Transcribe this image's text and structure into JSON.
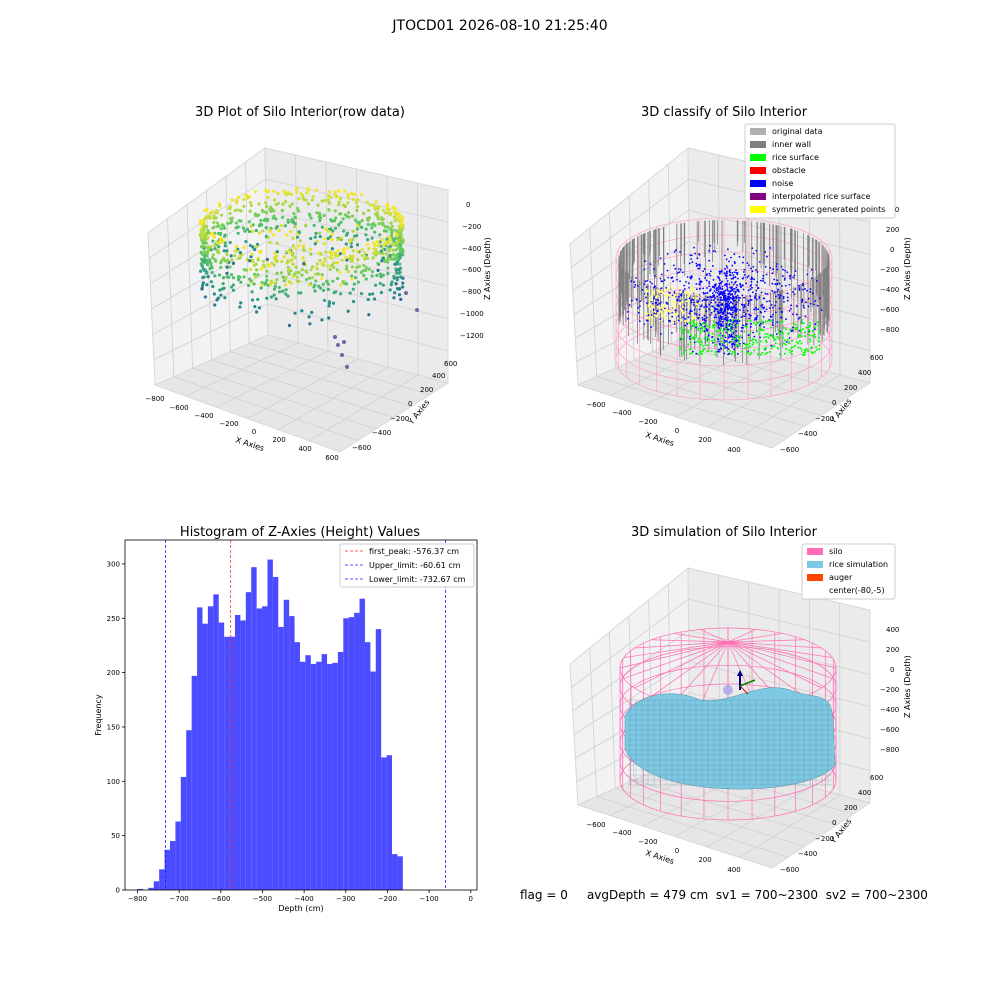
{
  "suptitle": "JTOCD01 2026-08-10 21:25:40",
  "status": {
    "flag": "flag = 0",
    "avgDepth": "avgDepth = 479 cm",
    "sv1": "sv1 = 700~2300",
    "sv2": "sv2 = 700~2300"
  },
  "colors": {
    "hist_bar": "#4b4bff",
    "first_peak_line": "#ff2a2a",
    "limit_line": "#1a1aff",
    "silo": "#ff6eb4",
    "rice_simulation": "#7ec8e3",
    "auger": "#ff4500",
    "rice_surface": "#00ff00",
    "noise": "#0000ff",
    "inner_wall": "#808080",
    "original_data": "#b0b0b0",
    "obstacle": "#ff0000",
    "interpolated": "#800080",
    "symmetric": "#ffff00"
  },
  "chart_data": [
    {
      "type": "scatter",
      "title": "3D Plot of Silo Interior(row data)",
      "xlabel": "X Axies",
      "ylabel": "Y Axies",
      "zlabel": "Z Axies (Depth)",
      "x_ticks": [
        "−800",
        "−600",
        "−400",
        "−200",
        "0",
        "200",
        "400",
        "600"
      ],
      "y_ticks": [
        "−600",
        "−400",
        "−200",
        "0",
        "200",
        "400",
        "600"
      ],
      "z_ticks": [
        "0",
        "−200",
        "−400",
        "−600",
        "−800",
        "−1000",
        "−1200"
      ],
      "xlim": [
        -800,
        600
      ],
      "ylim": [
        -600,
        600
      ],
      "zlim": [
        -1200,
        0
      ],
      "colormap": "viridis"
    },
    {
      "type": "scatter",
      "title": "3D classify of Silo Interior",
      "xlabel": "X Axies",
      "ylabel": "Y Axies",
      "zlabel": "Z Axies (Depth)",
      "x_ticks": [
        "−600",
        "−400",
        "−200",
        "0",
        "200",
        "400"
      ],
      "y_ticks": [
        "−600",
        "−400",
        "−200",
        "0",
        "200",
        "400",
        "600"
      ],
      "z_ticks": [
        "400",
        "200",
        "0",
        "−200",
        "−400",
        "−600",
        "−800"
      ],
      "legend": [
        "original data",
        "inner wall",
        "rice surface",
        "obstacle",
        "noise",
        "interpolated rice surface",
        "symmetric generated points"
      ],
      "legend_position": "top-right"
    },
    {
      "type": "bar",
      "title": "Histogram of Z-Axies (Height) Values",
      "xlabel": "Depth (cm)",
      "ylabel": "Frequency",
      "xlim": [
        -830,
        15
      ],
      "ylim": [
        0,
        322
      ],
      "x_ticks": [
        -800,
        -700,
        -600,
        -500,
        -400,
        -300,
        -200,
        -100,
        0
      ],
      "x_tick_labels": [
        "−800",
        "−700",
        "−600",
        "−500",
        "−400",
        "−300",
        "−200",
        "−100",
        "0"
      ],
      "y_ticks": [
        0,
        50,
        100,
        150,
        200,
        250,
        300
      ],
      "bin_start": -800,
      "bin_width": 13,
      "values": [
        1,
        0,
        2,
        8,
        19,
        37,
        45,
        63,
        104,
        147,
        197,
        260,
        245,
        261,
        272,
        246,
        233,
        233,
        253,
        248,
        274,
        297,
        259,
        261,
        304,
        288,
        242,
        267,
        252,
        228,
        210,
        216,
        208,
        210,
        217,
        208,
        209,
        219,
        250,
        251,
        255,
        268,
        228,
        201,
        240,
        122,
        124,
        33,
        31
      ],
      "vlines": [
        {
          "label": "first_peak: -576.37 cm",
          "x": -576.37,
          "color": "red"
        },
        {
          "label": "Upper_limit: -60.61 cm",
          "x": -60.61,
          "color": "blue"
        },
        {
          "label": "Lower_limit: -732.67 cm",
          "x": -732.67,
          "color": "blue"
        }
      ],
      "legend_position": "top-right"
    },
    {
      "type": "surface",
      "title": "3D simulation of Silo Interior",
      "xlabel": "X Axies",
      "ylabel": "Y Axies",
      "zlabel": "Z Axies (Depth)",
      "x_ticks": [
        "−600",
        "−400",
        "−200",
        "0",
        "200",
        "400"
      ],
      "y_ticks": [
        "−600",
        "−400",
        "−200",
        "0",
        "200",
        "400",
        "600"
      ],
      "z_ticks": [
        "400",
        "200",
        "0",
        "−200",
        "−400",
        "−600",
        "−800"
      ],
      "legend": [
        "silo",
        "rice simulation",
        "auger",
        "center(-80,-5)"
      ],
      "legend_position": "top-right"
    }
  ]
}
